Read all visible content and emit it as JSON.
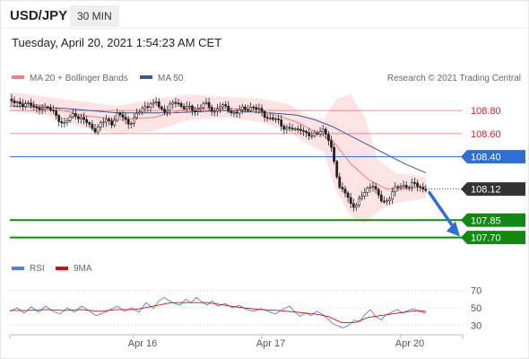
{
  "header": {
    "symbol": "USD/JPY",
    "timeframe": "30 MIN",
    "datetime": "Tuesday, April 20, 2021 1:54:23 AM CET"
  },
  "legend": {
    "ma20": "MA 20 + Bollinger Bands",
    "ma50": "MA 50",
    "copyright": "Research © 2021 Trading Central",
    "rsi": "RSI",
    "rsi_ma": "9MA"
  },
  "colors": {
    "ma20": "#f08080",
    "ma50": "#3a5a90",
    "band_fill": "#fde3e3",
    "candle": "#222222",
    "resistance": "#e05050",
    "pivot": "#2f6fd0",
    "support": "#128a12",
    "last": "#333333",
    "arrow": "#2f6fd0",
    "rsi": "#5b7fd6",
    "rsi_ma": "#cc1111"
  },
  "chart_data": [
    {
      "type": "candlestick",
      "title": "USD/JPY 30 MIN",
      "x_ticks": [
        "Apr 16",
        "Apr 17",
        "Apr 20"
      ],
      "ylim": [
        107.58,
        108.98
      ],
      "levels": [
        {
          "name": "resistance-2",
          "value": "108.80",
          "kind": "resistance"
        },
        {
          "name": "resistance-1",
          "value": "108.60",
          "kind": "resistance"
        },
        {
          "name": "pivot",
          "value": "108.40",
          "kind": "pivot"
        },
        {
          "name": "last",
          "value": "108.12",
          "kind": "last"
        },
        {
          "name": "support-1",
          "value": "107.85",
          "kind": "support"
        },
        {
          "name": "support-2",
          "value": "107.70",
          "kind": "support"
        }
      ],
      "close_path": [
        [
          0,
          108.9
        ],
        [
          6,
          108.86
        ],
        [
          12,
          108.84
        ],
        [
          18,
          108.88
        ],
        [
          24,
          108.84
        ],
        [
          30,
          108.8
        ],
        [
          36,
          108.84
        ],
        [
          42,
          108.82
        ],
        [
          48,
          108.78
        ],
        [
          54,
          108.74
        ],
        [
          60,
          108.68
        ],
        [
          66,
          108.72
        ],
        [
          72,
          108.78
        ],
        [
          78,
          108.74
        ],
        [
          84,
          108.7
        ],
        [
          90,
          108.66
        ],
        [
          96,
          108.64
        ],
        [
          102,
          108.68
        ],
        [
          108,
          108.72
        ],
        [
          114,
          108.7
        ],
        [
          120,
          108.76
        ],
        [
          126,
          108.74
        ],
        [
          132,
          108.7
        ],
        [
          138,
          108.72
        ],
        [
          144,
          108.78
        ],
        [
          150,
          108.84
        ],
        [
          156,
          108.86
        ],
        [
          160,
          108.84
        ],
        [
          162,
          108.88
        ],
        [
          168,
          108.82
        ],
        [
          174,
          108.8
        ],
        [
          180,
          108.84
        ],
        [
          186,
          108.88
        ],
        [
          192,
          108.84
        ],
        [
          198,
          108.82
        ],
        [
          204,
          108.8
        ],
        [
          210,
          108.82
        ],
        [
          216,
          108.86
        ],
        [
          222,
          108.82
        ],
        [
          228,
          108.8
        ],
        [
          234,
          108.84
        ],
        [
          240,
          108.82
        ],
        [
          246,
          108.8
        ],
        [
          252,
          108.78
        ],
        [
          258,
          108.8
        ],
        [
          264,
          108.82
        ],
        [
          270,
          108.84
        ],
        [
          276,
          108.8
        ],
        [
          282,
          108.78
        ],
        [
          288,
          108.74
        ],
        [
          294,
          108.72
        ],
        [
          300,
          108.7
        ],
        [
          306,
          108.66
        ],
        [
          312,
          108.64
        ],
        [
          318,
          108.62
        ],
        [
          324,
          108.66
        ],
        [
          330,
          108.6
        ],
        [
          336,
          108.56
        ],
        [
          342,
          108.62
        ],
        [
          348,
          108.64
        ],
        [
          354,
          108.56
        ],
        [
          360,
          108.44
        ],
        [
          364,
          108.28
        ],
        [
          368,
          108.12
        ],
        [
          374,
          108.08
        ],
        [
          380,
          108.0
        ],
        [
          386,
          107.98
        ],
        [
          392,
          108.04
        ],
        [
          398,
          108.12
        ],
        [
          404,
          108.18
        ],
        [
          410,
          108.06
        ],
        [
          416,
          108.0
        ],
        [
          422,
          108.04
        ],
        [
          428,
          108.1
        ],
        [
          434,
          108.14
        ],
        [
          440,
          108.16
        ],
        [
          446,
          108.14
        ],
        [
          452,
          108.16
        ],
        [
          458,
          108.14
        ],
        [
          464,
          108.12
        ]
      ],
      "ma20": [
        [
          0,
          108.88
        ],
        [
          40,
          108.84
        ],
        [
          80,
          108.76
        ],
        [
          120,
          108.72
        ],
        [
          160,
          108.74
        ],
        [
          200,
          108.82
        ],
        [
          240,
          108.82
        ],
        [
          280,
          108.8
        ],
        [
          320,
          108.7
        ],
        [
          340,
          108.62
        ],
        [
          360,
          108.54
        ],
        [
          380,
          108.34
        ],
        [
          400,
          108.2
        ],
        [
          420,
          108.12
        ],
        [
          440,
          108.12
        ],
        [
          464,
          108.14
        ]
      ],
      "ma50": [
        [
          0,
          108.84
        ],
        [
          60,
          108.82
        ],
        [
          120,
          108.78
        ],
        [
          180,
          108.78
        ],
        [
          240,
          108.8
        ],
        [
          290,
          108.78
        ],
        [
          320,
          108.76
        ],
        [
          340,
          108.72
        ],
        [
          360,
          108.66
        ],
        [
          380,
          108.58
        ],
        [
          400,
          108.5
        ],
        [
          420,
          108.42
        ],
        [
          440,
          108.34
        ],
        [
          464,
          108.26
        ]
      ],
      "bollinger_upper": [
        [
          0,
          108.96
        ],
        [
          40,
          108.92
        ],
        [
          80,
          108.88
        ],
        [
          120,
          108.84
        ],
        [
          160,
          108.9
        ],
        [
          200,
          108.94
        ],
        [
          240,
          108.92
        ],
        [
          280,
          108.9
        ],
        [
          310,
          108.86
        ],
        [
          330,
          108.76
        ],
        [
          350,
          108.72
        ],
        [
          364,
          108.9
        ],
        [
          380,
          108.94
        ],
        [
          396,
          108.74
        ],
        [
          410,
          108.38
        ],
        [
          430,
          108.26
        ],
        [
          450,
          108.24
        ],
        [
          464,
          108.22
        ]
      ],
      "bollinger_lower": [
        [
          0,
          108.8
        ],
        [
          40,
          108.76
        ],
        [
          80,
          108.66
        ],
        [
          120,
          108.6
        ],
        [
          160,
          108.62
        ],
        [
          200,
          108.72
        ],
        [
          240,
          108.74
        ],
        [
          280,
          108.7
        ],
        [
          310,
          108.62
        ],
        [
          330,
          108.52
        ],
        [
          350,
          108.44
        ],
        [
          364,
          108.1
        ],
        [
          380,
          107.88
        ],
        [
          396,
          107.82
        ],
        [
          410,
          107.92
        ],
        [
          430,
          108.0
        ],
        [
          450,
          108.02
        ],
        [
          464,
          108.04
        ]
      ]
    },
    {
      "type": "line",
      "title": "RSI",
      "ylim": [
        22,
        78
      ],
      "y_ticks": [
        "70",
        "50",
        "30"
      ],
      "series": [
        {
          "name": "RSI",
          "values": [
            [
              0,
              46
            ],
            [
              8,
              50
            ],
            [
              16,
              44
            ],
            [
              24,
              51
            ],
            [
              32,
              45
            ],
            [
              40,
              52
            ],
            [
              48,
              46
            ],
            [
              56,
              43
            ],
            [
              64,
              50
            ],
            [
              72,
              45
            ],
            [
              80,
              52
            ],
            [
              88,
              47
            ],
            [
              96,
              41
            ],
            [
              104,
              44
            ],
            [
              112,
              48
            ],
            [
              120,
              52
            ],
            [
              128,
              46
            ],
            [
              136,
              50
            ],
            [
              144,
              45
            ],
            [
              152,
              56
            ],
            [
              160,
              49
            ],
            [
              166,
              58
            ],
            [
              172,
              62
            ],
            [
              178,
              58
            ],
            [
              184,
              55
            ],
            [
              190,
              53
            ],
            [
              196,
              60
            ],
            [
              202,
              56
            ],
            [
              208,
              62
            ],
            [
              214,
              57
            ],
            [
              220,
              53
            ],
            [
              226,
              58
            ],
            [
              232,
              52
            ],
            [
              240,
              55
            ],
            [
              248,
              50
            ],
            [
              256,
              53
            ],
            [
              264,
              48
            ],
            [
              272,
              46
            ],
            [
              280,
              49
            ],
            [
              288,
              46
            ],
            [
              296,
              43
            ],
            [
              304,
              48
            ],
            [
              312,
              52
            ],
            [
              318,
              45
            ],
            [
              324,
              40
            ],
            [
              330,
              44
            ],
            [
              336,
              41
            ],
            [
              342,
              46
            ],
            [
              348,
              43
            ],
            [
              354,
              38
            ],
            [
              360,
              32
            ],
            [
              366,
              29
            ],
            [
              372,
              27
            ],
            [
              378,
              30
            ],
            [
              384,
              36
            ],
            [
              390,
              34
            ],
            [
              396,
              42
            ],
            [
              402,
              48
            ],
            [
              408,
              40
            ],
            [
              414,
              36
            ],
            [
              420,
              42
            ],
            [
              426,
              45
            ],
            [
              432,
              48
            ],
            [
              438,
              44
            ],
            [
              444,
              47
            ],
            [
              450,
              49
            ],
            [
              456,
              46
            ],
            [
              464,
              44
            ]
          ]
        },
        {
          "name": "9MA",
          "values": [
            [
              0,
              47
            ],
            [
              20,
              47
            ],
            [
              40,
              48
            ],
            [
              60,
              47
            ],
            [
              80,
              48
            ],
            [
              100,
              46
            ],
            [
              120,
              48
            ],
            [
              140,
              48
            ],
            [
              160,
              52
            ],
            [
              180,
              56
            ],
            [
              200,
              56
            ],
            [
              220,
              56
            ],
            [
              240,
              53
            ],
            [
              260,
              50
            ],
            [
              280,
              48
            ],
            [
              300,
              47
            ],
            [
              320,
              45
            ],
            [
              340,
              43
            ],
            [
              355,
              40
            ],
            [
              370,
              33
            ],
            [
              385,
              33
            ],
            [
              400,
              39
            ],
            [
              420,
              42
            ],
            [
              440,
              45
            ],
            [
              455,
              47
            ],
            [
              464,
              46
            ]
          ]
        }
      ]
    }
  ]
}
